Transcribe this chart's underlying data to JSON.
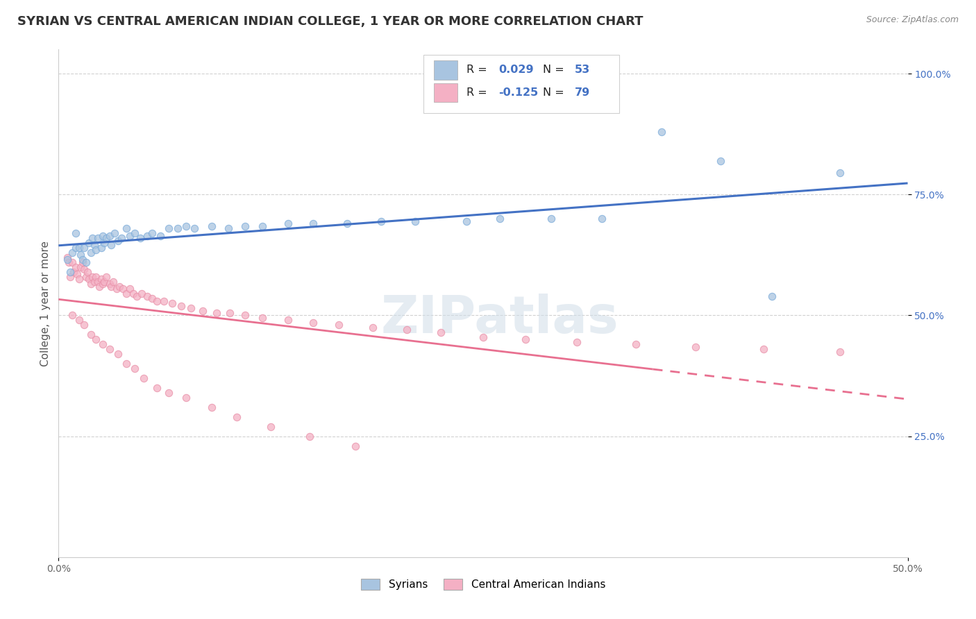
{
  "title": "SYRIAN VS CENTRAL AMERICAN INDIAN COLLEGE, 1 YEAR OR MORE CORRELATION CHART",
  "source": "Source: ZipAtlas.com",
  "ylabel": "College, 1 year or more",
  "xmin": 0.0,
  "xmax": 0.5,
  "ymin": 0.0,
  "ymax": 1.05,
  "watermark": "ZIPatlas",
  "legend_label1": "Syrians",
  "legend_label2": "Central American Indians",
  "R1": 0.029,
  "N1": 53,
  "R2": -0.125,
  "N2": 79,
  "color_syrian": "#a8c4e0",
  "color_central": "#f4b0c4",
  "line_color_syrian": "#4472c4",
  "line_color_central": "#e87090",
  "background_color": "#ffffff",
  "grid_color": "#cccccc",
  "title_fontsize": 13,
  "axis_label_fontsize": 11,
  "tick_fontsize": 10,
  "scatter_size": 55,
  "scatter_alpha": 0.75,
  "scatter_linewidth": 0.8,
  "scatter_edgecolor_s": "#7aabda",
  "scatter_edgecolor_c": "#e890a8",
  "syrian_x": [
    0.005,
    0.007,
    0.008,
    0.01,
    0.01,
    0.012,
    0.013,
    0.014,
    0.015,
    0.016,
    0.018,
    0.019,
    0.02,
    0.021,
    0.022,
    0.023,
    0.025,
    0.026,
    0.027,
    0.028,
    0.03,
    0.031,
    0.033,
    0.035,
    0.037,
    0.04,
    0.042,
    0.045,
    0.048,
    0.052,
    0.055,
    0.06,
    0.065,
    0.07,
    0.075,
    0.08,
    0.09,
    0.1,
    0.11,
    0.12,
    0.135,
    0.15,
    0.17,
    0.19,
    0.21,
    0.24,
    0.26,
    0.29,
    0.32,
    0.355,
    0.39,
    0.42,
    0.46
  ],
  "syrian_y": [
    0.615,
    0.59,
    0.63,
    0.67,
    0.64,
    0.64,
    0.625,
    0.615,
    0.64,
    0.61,
    0.65,
    0.63,
    0.66,
    0.645,
    0.635,
    0.66,
    0.64,
    0.665,
    0.65,
    0.66,
    0.665,
    0.645,
    0.67,
    0.655,
    0.66,
    0.68,
    0.665,
    0.67,
    0.66,
    0.665,
    0.67,
    0.665,
    0.68,
    0.68,
    0.685,
    0.68,
    0.685,
    0.68,
    0.685,
    0.685,
    0.69,
    0.69,
    0.69,
    0.695,
    0.695,
    0.695,
    0.7,
    0.7,
    0.7,
    0.88,
    0.82,
    0.54,
    0.795
  ],
  "central_x": [
    0.005,
    0.006,
    0.007,
    0.008,
    0.009,
    0.01,
    0.011,
    0.012,
    0.013,
    0.014,
    0.015,
    0.016,
    0.017,
    0.018,
    0.019,
    0.02,
    0.021,
    0.022,
    0.023,
    0.024,
    0.025,
    0.026,
    0.027,
    0.028,
    0.03,
    0.031,
    0.032,
    0.034,
    0.036,
    0.038,
    0.04,
    0.042,
    0.044,
    0.046,
    0.049,
    0.052,
    0.055,
    0.058,
    0.062,
    0.067,
    0.072,
    0.078,
    0.085,
    0.093,
    0.101,
    0.11,
    0.12,
    0.135,
    0.15,
    0.165,
    0.185,
    0.205,
    0.225,
    0.25,
    0.275,
    0.305,
    0.34,
    0.375,
    0.415,
    0.46,
    0.008,
    0.012,
    0.015,
    0.019,
    0.022,
    0.026,
    0.03,
    0.035,
    0.04,
    0.045,
    0.05,
    0.058,
    0.065,
    0.075,
    0.09,
    0.105,
    0.125,
    0.148,
    0.175
  ],
  "central_y": [
    0.62,
    0.61,
    0.58,
    0.61,
    0.59,
    0.6,
    0.585,
    0.575,
    0.6,
    0.61,
    0.595,
    0.58,
    0.59,
    0.575,
    0.565,
    0.58,
    0.57,
    0.58,
    0.57,
    0.56,
    0.575,
    0.565,
    0.57,
    0.58,
    0.565,
    0.56,
    0.57,
    0.555,
    0.56,
    0.555,
    0.545,
    0.555,
    0.545,
    0.54,
    0.545,
    0.54,
    0.535,
    0.53,
    0.53,
    0.525,
    0.52,
    0.515,
    0.51,
    0.505,
    0.505,
    0.5,
    0.495,
    0.49,
    0.485,
    0.48,
    0.475,
    0.47,
    0.465,
    0.455,
    0.45,
    0.445,
    0.44,
    0.435,
    0.43,
    0.425,
    0.5,
    0.49,
    0.48,
    0.46,
    0.45,
    0.44,
    0.43,
    0.42,
    0.4,
    0.39,
    0.37,
    0.35,
    0.34,
    0.33,
    0.31,
    0.29,
    0.27,
    0.25,
    0.23
  ]
}
